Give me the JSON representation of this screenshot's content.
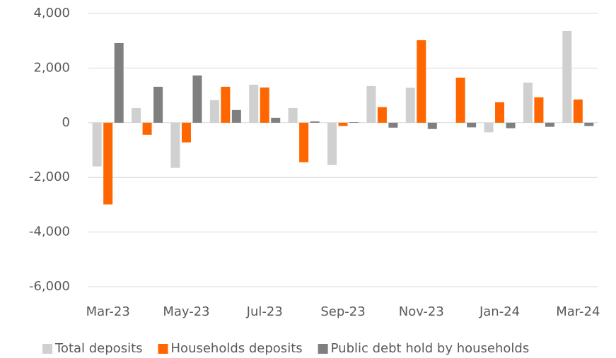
{
  "chart_data": {
    "type": "bar",
    "categories": [
      "Mar-23",
      null,
      "May-23",
      null,
      "Jul-23",
      null,
      "Sep-23",
      null,
      "Nov-23",
      null,
      "Jan-24",
      null,
      "Mar-24"
    ],
    "series": [
      {
        "name": "Total deposits",
        "color": "#d0d0d0",
        "values": [
          -1600,
          540,
          -1650,
          826,
          1390,
          540,
          -1550,
          1340,
          1280,
          0,
          -350,
          1470,
          3355
        ]
      },
      {
        "name": "Households deposits",
        "color": "#ff6600",
        "values": [
          -2990,
          -440,
          -720,
          1316,
          1290,
          -1445,
          -120,
          570,
          3020,
          1650,
          750,
          930,
          850
        ]
      },
      {
        "name": "Public debt hold by households",
        "color": "#7f7f7f",
        "values": [
          2916,
          1316,
          1730,
          465,
          180,
          50,
          20,
          -180,
          -230,
          -170,
          -200,
          -150,
          -120
        ]
      }
    ],
    "ylim": [
      -6000,
      4000
    ],
    "yticks": [
      {
        "value": -6000,
        "label": "-6,000"
      },
      {
        "value": -4000,
        "label": "-4,000"
      },
      {
        "value": -2000,
        "label": "-2,000"
      },
      0,
      {
        "value": 2000,
        "label": "2,000"
      },
      {
        "value": 4000,
        "label": "4,000"
      }
    ],
    "grid": true,
    "legend": "bottom"
  }
}
